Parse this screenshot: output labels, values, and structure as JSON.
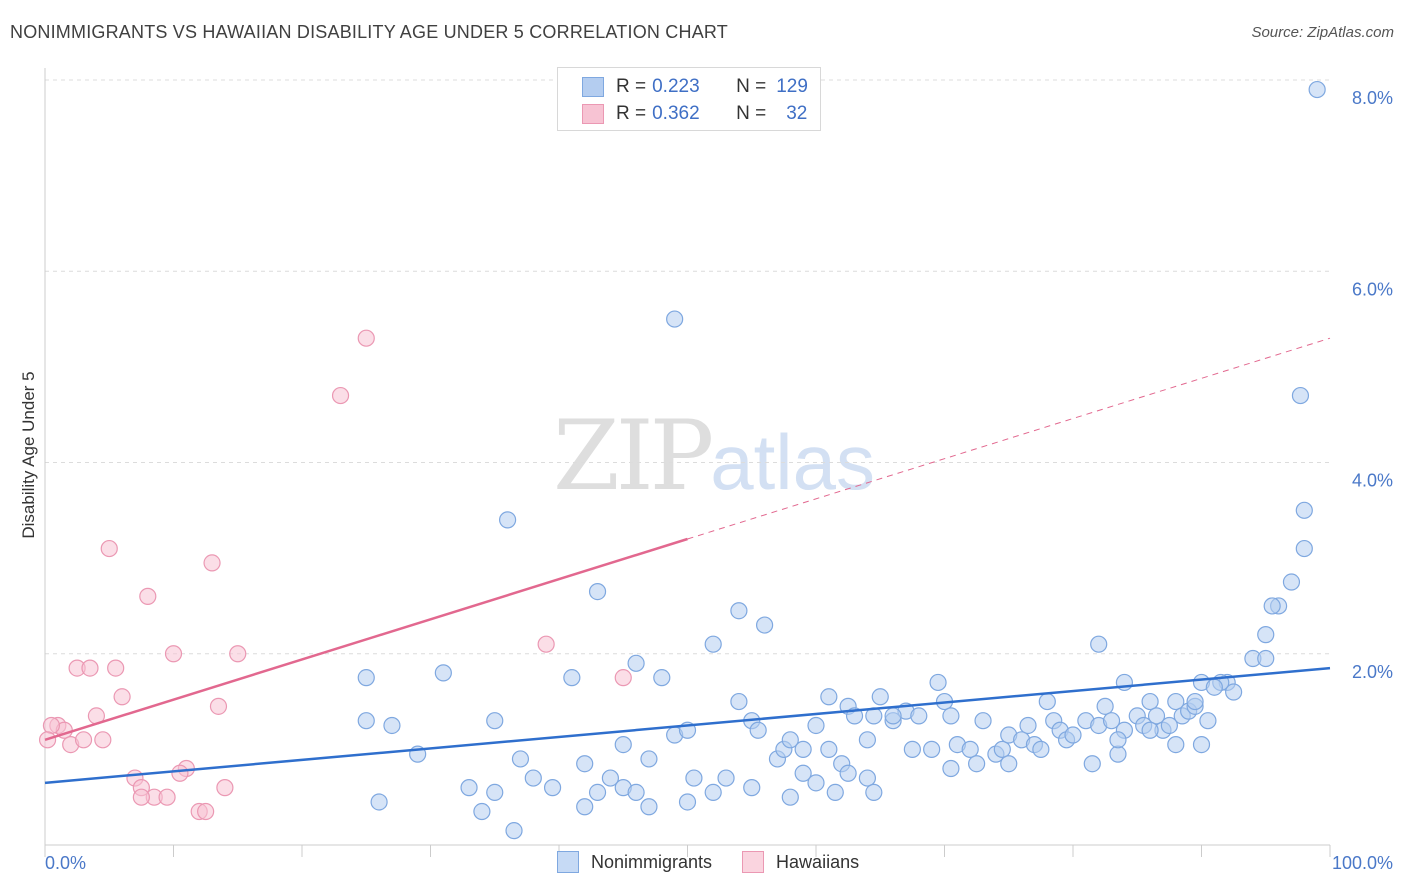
{
  "title": "NONIMMIGRANTS VS HAWAIIAN DISABILITY AGE UNDER 5 CORRELATION CHART",
  "source": "Source: ZipAtlas.com",
  "watermark": {
    "zip": "ZIP",
    "atlas": "atlas"
  },
  "legend": {
    "rows": [
      {
        "r_label": "R =",
        "r_value": "0.223",
        "n_label": "N =",
        "n_value": "129"
      },
      {
        "r_label": "R =",
        "r_value": "0.362",
        "n_label": "N =",
        "n_value": "32"
      }
    ],
    "bottom": [
      "Nonimmigrants",
      "Hawaiians"
    ]
  },
  "colors": {
    "blue_fill": "#b4cdf0",
    "blue_stroke": "#7fa8e0",
    "blue_line": "#2f6fcd",
    "pink_fill": "#f7c3d3",
    "pink_stroke": "#eb98b3",
    "pink_line": "#e2688f",
    "grid": "#dcdcdc",
    "tick_text": "#4a78c8"
  },
  "chart_data": {
    "type": "scatter",
    "title": "NONIMMIGRANTS VS HAWAIIAN DISABILITY AGE UNDER 5 CORRELATION CHART",
    "xlabel": "",
    "ylabel": "Disability Age Under 5",
    "xlim": [
      0,
      100
    ],
    "ylim": [
      0,
      8.0
    ],
    "x_tick_labels": [
      "0.0%",
      "100.0%"
    ],
    "y_ticks": [
      2.0,
      4.0,
      6.0,
      8.0
    ],
    "y_tick_labels": [
      "2.0%",
      "4.0%",
      "6.0%",
      "8.0%"
    ],
    "grid": "horizontal dashed",
    "legend_position": "top-center",
    "series": [
      {
        "name": "Nonimmigrants",
        "color": "#b4cdf0",
        "points": [
          [
            99.0,
            7.9
          ],
          [
            97.7,
            4.7
          ],
          [
            49.0,
            5.5
          ],
          [
            36.0,
            3.4
          ],
          [
            98.0,
            3.5
          ],
          [
            98.0,
            3.1
          ],
          [
            97.0,
            2.75
          ],
          [
            96.0,
            2.5
          ],
          [
            95.5,
            2.5
          ],
          [
            95.0,
            2.2
          ],
          [
            43.0,
            2.65
          ],
          [
            54.0,
            2.45
          ],
          [
            56.0,
            2.3
          ],
          [
            52.0,
            2.1
          ],
          [
            82.0,
            2.1
          ],
          [
            25.0,
            1.75
          ],
          [
            31.0,
            1.8
          ],
          [
            41.0,
            1.75
          ],
          [
            46.0,
            1.9
          ],
          [
            48.0,
            1.75
          ],
          [
            94.0,
            1.95
          ],
          [
            95.0,
            1.95
          ],
          [
            92.0,
            1.7
          ],
          [
            91.5,
            1.7
          ],
          [
            90.0,
            1.7
          ],
          [
            91.0,
            1.65
          ],
          [
            92.5,
            1.6
          ],
          [
            88.0,
            1.5
          ],
          [
            86.0,
            1.5
          ],
          [
            84.0,
            1.7
          ],
          [
            25.0,
            1.3
          ],
          [
            27.0,
            1.25
          ],
          [
            35.0,
            1.3
          ],
          [
            29.0,
            0.95
          ],
          [
            37.0,
            0.9
          ],
          [
            42.0,
            0.85
          ],
          [
            45.0,
            1.05
          ],
          [
            47.0,
            0.9
          ],
          [
            49.0,
            1.15
          ],
          [
            50.0,
            1.2
          ],
          [
            54.0,
            1.5
          ],
          [
            55.0,
            1.3
          ],
          [
            55.5,
            1.2
          ],
          [
            57.0,
            0.9
          ],
          [
            57.5,
            1.0
          ],
          [
            58.0,
            1.1
          ],
          [
            59.0,
            1.0
          ],
          [
            60.0,
            1.25
          ],
          [
            61.0,
            1.0
          ],
          [
            62.0,
            0.85
          ],
          [
            61.0,
            1.55
          ],
          [
            62.5,
            1.45
          ],
          [
            63.0,
            1.35
          ],
          [
            64.0,
            1.1
          ],
          [
            64.5,
            1.35
          ],
          [
            65.0,
            1.55
          ],
          [
            66.0,
            1.3
          ],
          [
            67.0,
            1.4
          ],
          [
            68.0,
            1.35
          ],
          [
            69.0,
            1.0
          ],
          [
            69.5,
            1.7
          ],
          [
            70.0,
            1.5
          ],
          [
            70.5,
            1.35
          ],
          [
            71.0,
            1.05
          ],
          [
            72.0,
            1.0
          ],
          [
            73.0,
            1.3
          ],
          [
            74.0,
            0.95
          ],
          [
            74.5,
            1.0
          ],
          [
            75.0,
            1.15
          ],
          [
            76.0,
            1.1
          ],
          [
            76.5,
            1.25
          ],
          [
            77.0,
            1.05
          ],
          [
            78.0,
            1.5
          ],
          [
            78.5,
            1.3
          ],
          [
            79.0,
            1.2
          ],
          [
            79.5,
            1.1
          ],
          [
            80.0,
            1.15
          ],
          [
            81.0,
            1.3
          ],
          [
            82.0,
            1.25
          ],
          [
            82.5,
            1.45
          ],
          [
            83.0,
            1.3
          ],
          [
            83.5,
            0.95
          ],
          [
            84.0,
            1.2
          ],
          [
            85.0,
            1.35
          ],
          [
            85.5,
            1.25
          ],
          [
            86.5,
            1.35
          ],
          [
            87.0,
            1.2
          ],
          [
            87.5,
            1.25
          ],
          [
            88.5,
            1.35
          ],
          [
            89.0,
            1.4
          ],
          [
            89.5,
            1.45
          ],
          [
            90.0,
            1.05
          ],
          [
            90.5,
            1.3
          ],
          [
            75.0,
            0.85
          ],
          [
            77.5,
            1.0
          ],
          [
            81.5,
            0.85
          ],
          [
            83.5,
            1.1
          ],
          [
            86.0,
            1.2
          ],
          [
            88.0,
            1.05
          ],
          [
            89.5,
            1.5
          ],
          [
            43.0,
            0.55
          ],
          [
            45.0,
            0.6
          ],
          [
            47.0,
            0.4
          ],
          [
            50.0,
            0.45
          ],
          [
            52.0,
            0.55
          ],
          [
            53.0,
            0.7
          ],
          [
            55.0,
            0.6
          ],
          [
            58.0,
            0.5
          ],
          [
            59.0,
            0.75
          ],
          [
            60.0,
            0.65
          ],
          [
            61.5,
            0.55
          ],
          [
            62.5,
            0.75
          ],
          [
            64.0,
            0.7
          ],
          [
            66.0,
            1.35
          ],
          [
            67.5,
            1.0
          ],
          [
            70.5,
            0.8
          ],
          [
            72.5,
            0.85
          ],
          [
            33.0,
            0.6
          ],
          [
            35.0,
            0.55
          ],
          [
            34.0,
            0.35
          ],
          [
            26.0,
            0.45
          ],
          [
            38.0,
            0.7
          ],
          [
            39.5,
            0.6
          ],
          [
            42.0,
            0.4
          ],
          [
            44.0,
            0.7
          ],
          [
            46.0,
            0.55
          ],
          [
            50.5,
            0.7
          ],
          [
            36.5,
            0.15
          ],
          [
            64.5,
            0.55
          ]
        ]
      },
      {
        "name": "Hawaiians",
        "color": "#f7c3d3",
        "points": [
          [
            25.0,
            5.3
          ],
          [
            23.0,
            4.7
          ],
          [
            5.0,
            3.1
          ],
          [
            13.0,
            2.95
          ],
          [
            8.0,
            2.6
          ],
          [
            39.0,
            2.1
          ],
          [
            45.0,
            1.75
          ],
          [
            10.0,
            2.0
          ],
          [
            15.0,
            2.0
          ],
          [
            2.5,
            1.85
          ],
          [
            3.5,
            1.85
          ],
          [
            5.5,
            1.85
          ],
          [
            6.0,
            1.55
          ],
          [
            13.5,
            1.45
          ],
          [
            4.0,
            1.35
          ],
          [
            1.0,
            1.25
          ],
          [
            1.5,
            1.2
          ],
          [
            0.5,
            1.25
          ],
          [
            2.0,
            1.05
          ],
          [
            3.0,
            1.1
          ],
          [
            4.5,
            1.1
          ],
          [
            0.2,
            1.1
          ],
          [
            11.0,
            0.8
          ],
          [
            10.5,
            0.75
          ],
          [
            7.0,
            0.7
          ],
          [
            7.5,
            0.6
          ],
          [
            8.5,
            0.5
          ],
          [
            9.5,
            0.5
          ],
          [
            7.5,
            0.5
          ],
          [
            12.0,
            0.35
          ],
          [
            12.5,
            0.35
          ],
          [
            14.0,
            0.6
          ]
        ]
      }
    ],
    "trendlines": [
      {
        "series": "Nonimmigrants",
        "from": [
          0,
          0.65
        ],
        "to": [
          100,
          1.85
        ],
        "style": "solid"
      },
      {
        "series": "Hawaiians",
        "from": [
          0,
          1.1
        ],
        "to": [
          50,
          3.2
        ],
        "style": "solid"
      },
      {
        "series": "Hawaiians",
        "from": [
          50,
          3.2
        ],
        "to": [
          100,
          5.3
        ],
        "style": "dashed"
      }
    ]
  }
}
